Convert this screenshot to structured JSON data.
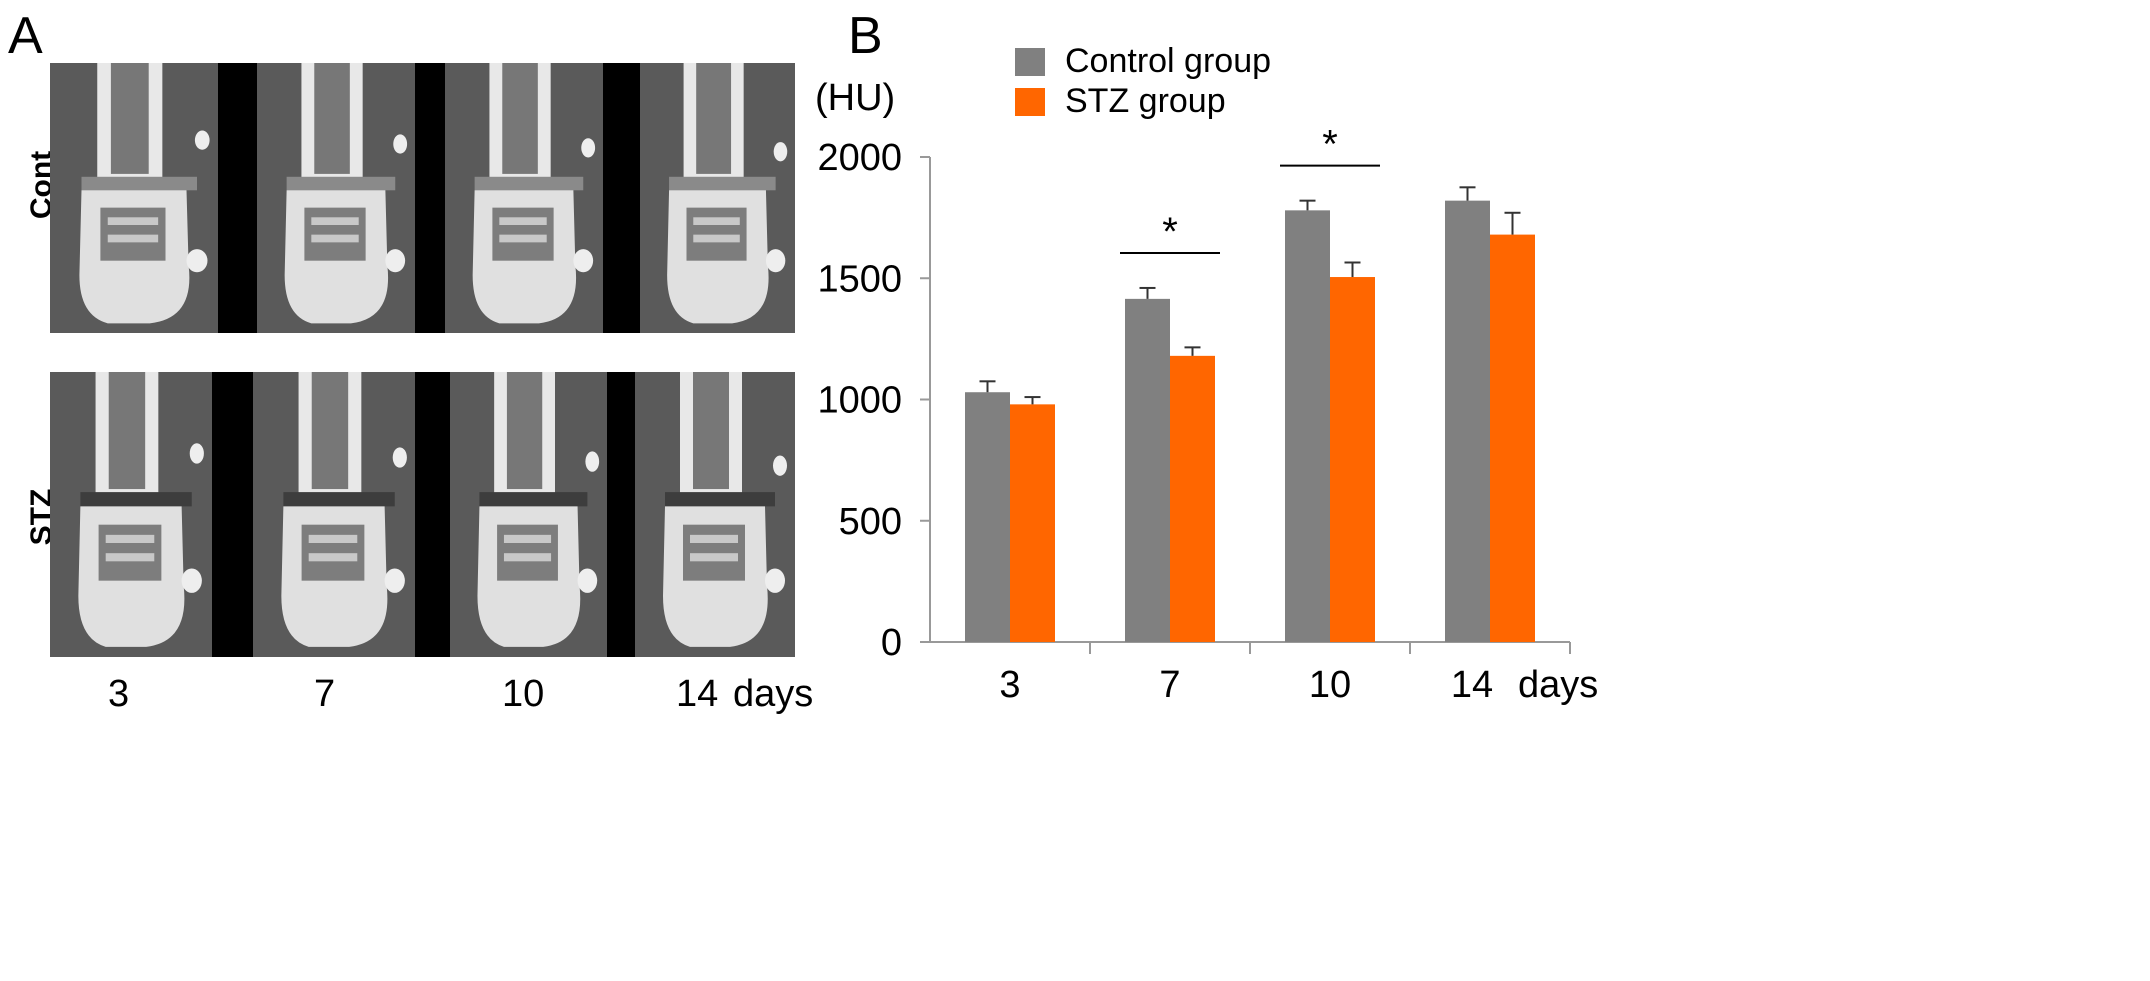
{
  "panelA": {
    "letter": "A",
    "rows": [
      {
        "label": "Cont"
      },
      {
        "label": "STZ"
      }
    ],
    "xticks": [
      "3",
      "7",
      "10",
      "14"
    ],
    "days_label": "days"
  },
  "panelB": {
    "letter": "B"
  },
  "chart_data": {
    "type": "bar",
    "categories": [
      "3",
      "7",
      "10",
      "14"
    ],
    "days_label": "days",
    "ylabel": "(HU)",
    "ylim": [
      0,
      2000
    ],
    "yticks": [
      0,
      500,
      1000,
      1500,
      2000
    ],
    "series": [
      {
        "name": "Control group",
        "color": "#808080",
        "values": [
          1030,
          1415,
          1780,
          1820
        ],
        "errors": [
          45,
          45,
          40,
          55
        ]
      },
      {
        "name": "STZ group",
        "color": "#ff6600",
        "values": [
          980,
          1180,
          1505,
          1680
        ],
        "errors": [
          30,
          35,
          60,
          90
        ]
      }
    ],
    "significance": [
      {
        "category": "7",
        "label": "*"
      },
      {
        "category": "10",
        "label": "*"
      }
    ],
    "legend_position": "top"
  }
}
